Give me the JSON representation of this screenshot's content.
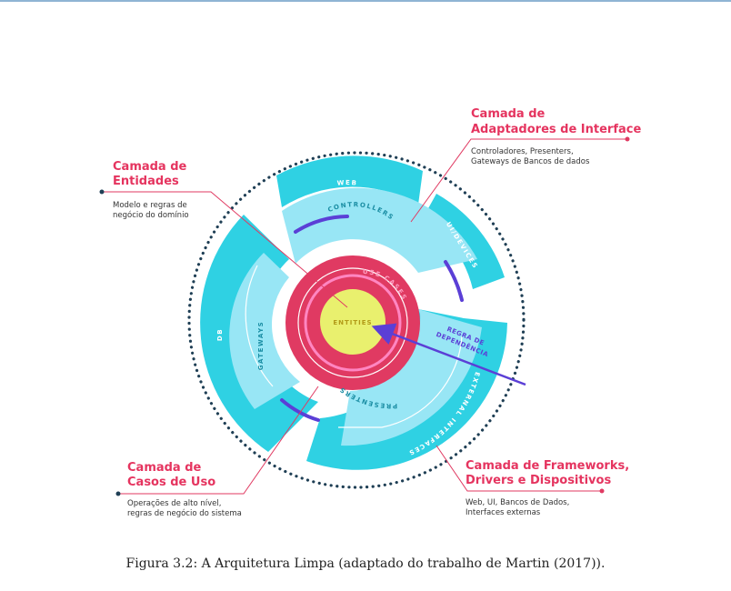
{
  "colors": {
    "outer": "#2fd1e3",
    "middle": "#98e6f5",
    "usecases": "#e03a62",
    "entities": "#e9f06e",
    "accent_text": "#e5345f",
    "arrow": "#5b3fd6",
    "leader": "#e03a62"
  },
  "diagram": {
    "rings": {
      "web": "WEB",
      "ui_devices": "UI/DEVICES",
      "db": "DB",
      "external_interfaces": "EXTERNAL INTERFACES",
      "controllers": "CONTROLLERS",
      "gateways": "GATEWAYS",
      "presenters": "PRESENTERS",
      "use_cases": "USE CASES",
      "entities": "ENTITIES"
    },
    "dependency_rule": {
      "line1": "REGRA DE",
      "line2": "DEPENDÊNCIA"
    },
    "callouts": {
      "adapters": {
        "title1": "Camada de",
        "title2": "Adaptadores de Interface",
        "desc1": "Controladores, Presenters,",
        "desc2": "Gateways de Bancos de dados"
      },
      "entities": {
        "title1": "Camada de",
        "title2": "Entidades",
        "desc1": "Modelo e regras de",
        "desc2": "negócio do domínio"
      },
      "usecases": {
        "title1": "Camada de",
        "title2": "Casos de Uso",
        "desc1": "Operações de alto nível,",
        "desc2": "regras de negócio do sistema"
      },
      "frameworks": {
        "title1": "Camada de Frameworks,",
        "title2": "Drivers e Dispositivos",
        "desc1": "Web, UI, Bancos de Dados,",
        "desc2": "Interfaces externas"
      }
    }
  },
  "caption": "Figura 3.2: A Arquitetura Limpa (adaptado do trabalho de Martin (2017))."
}
